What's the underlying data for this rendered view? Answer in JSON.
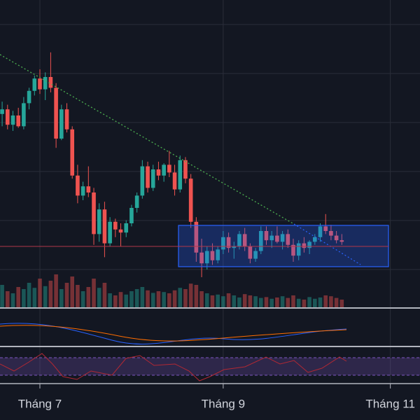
{
  "chart_data": {
    "type": "candlestick",
    "up_color": "#26a69a",
    "down_color": "#ef5350",
    "xlim": [
      -0.4,
      77.5
    ],
    "ylim": [
      10,
      30
    ],
    "volume_ylim": [
      0,
      100
    ],
    "xticks": [
      {
        "value": 7,
        "label": "Tháng 7"
      },
      {
        "value": 41,
        "label": "Tháng 9"
      },
      {
        "value": 72,
        "label": "Tháng 11"
      }
    ],
    "grid": true,
    "candles": [
      [
        22.6,
        23.4,
        21.8,
        22.9
      ],
      [
        22.9,
        23.2,
        21.6,
        21.9
      ],
      [
        21.9,
        22.8,
        21.5,
        22.5
      ],
      [
        22.5,
        23.0,
        21.7,
        21.8
      ],
      [
        21.8,
        23.7,
        21.6,
        23.3
      ],
      [
        23.3,
        24.3,
        22.9,
        24.1
      ],
      [
        24.1,
        25.1,
        23.8,
        24.9
      ],
      [
        24.9,
        25.5,
        23.9,
        24.2
      ],
      [
        24.2,
        25.3,
        23.5,
        25.0
      ],
      [
        25.0,
        26.6,
        24.0,
        24.3
      ],
      [
        24.3,
        24.6,
        20.4,
        21.0
      ],
      [
        21.0,
        23.2,
        20.9,
        22.9
      ],
      [
        22.9,
        23.3,
        21.4,
        21.6
      ],
      [
        21.6,
        21.8,
        18.4,
        18.6
      ],
      [
        18.6,
        19.3,
        16.8,
        17.3
      ],
      [
        17.3,
        18.2,
        17.0,
        17.9
      ],
      [
        17.9,
        19.2,
        17.2,
        17.5
      ],
      [
        17.5,
        17.8,
        14.1,
        14.8
      ],
      [
        14.8,
        16.8,
        14.3,
        16.4
      ],
      [
        16.4,
        16.9,
        13.3,
        14.2
      ],
      [
        14.2,
        15.9,
        14.0,
        15.6
      ],
      [
        15.6,
        15.8,
        14.6,
        15.1
      ],
      [
        15.1,
        15.5,
        14.0,
        14.9
      ],
      [
        14.9,
        15.7,
        14.6,
        15.5
      ],
      [
        15.5,
        16.7,
        15.3,
        16.5
      ],
      [
        16.5,
        17.5,
        16.2,
        17.3
      ],
      [
        17.3,
        19.6,
        17.1,
        19.2
      ],
      [
        19.2,
        19.5,
        17.5,
        17.8
      ],
      [
        17.8,
        19.3,
        17.6,
        19.0
      ],
      [
        19.0,
        19.5,
        18.3,
        18.6
      ],
      [
        18.6,
        19.4,
        18.2,
        19.3
      ],
      [
        19.3,
        20.2,
        18.5,
        18.8
      ],
      [
        18.8,
        19.3,
        17.3,
        17.7
      ],
      [
        17.7,
        19.9,
        17.5,
        19.6
      ],
      [
        19.6,
        19.8,
        18.1,
        18.4
      ],
      [
        18.4,
        18.7,
        15.2,
        15.6
      ],
      [
        15.6,
        15.9,
        13.0,
        13.6
      ],
      [
        13.6,
        14.5,
        12.0,
        12.9
      ],
      [
        12.9,
        14.0,
        12.5,
        13.7
      ],
      [
        13.7,
        14.2,
        12.8,
        13.1
      ],
      [
        13.1,
        14.0,
        12.9,
        13.8
      ],
      [
        13.8,
        15.0,
        13.5,
        14.6
      ],
      [
        14.6,
        14.9,
        13.6,
        13.9
      ],
      [
        13.9,
        14.3,
        13.2,
        14.0
      ],
      [
        14.0,
        15.0,
        13.8,
        14.8
      ],
      [
        14.8,
        15.2,
        13.7,
        14.0
      ],
      [
        14.0,
        14.2,
        12.9,
        13.2
      ],
      [
        13.2,
        13.9,
        13.0,
        13.7
      ],
      [
        13.7,
        15.3,
        13.5,
        15.0
      ],
      [
        15.0,
        15.3,
        14.1,
        14.4
      ],
      [
        14.4,
        15.0,
        13.9,
        14.7
      ],
      [
        14.7,
        15.3,
        14.2,
        14.3
      ],
      [
        14.3,
        15.0,
        13.8,
        14.8
      ],
      [
        14.8,
        15.1,
        13.9,
        14.1
      ],
      [
        14.1,
        14.5,
        13.0,
        13.4
      ],
      [
        13.4,
        14.4,
        13.1,
        14.2
      ],
      [
        14.2,
        14.6,
        13.6,
        13.9
      ],
      [
        13.9,
        14.4,
        13.5,
        14.3
      ],
      [
        14.3,
        14.8,
        14.1,
        14.6
      ],
      [
        14.6,
        15.5,
        14.3,
        15.3
      ],
      [
        15.3,
        16.1,
        14.8,
        15.0
      ],
      [
        15.0,
        15.4,
        14.4,
        14.7
      ],
      [
        14.7,
        15.0,
        14.2,
        14.4
      ],
      [
        14.4,
        14.8,
        14.1,
        14.3
      ]
    ],
    "volume": [
      55,
      40,
      35,
      50,
      45,
      60,
      48,
      70,
      52,
      65,
      80,
      45,
      60,
      75,
      55,
      40,
      50,
      70,
      48,
      60,
      35,
      30,
      38,
      32,
      40,
      45,
      50,
      42,
      36,
      40,
      38,
      35,
      42,
      48,
      45,
      58,
      55,
      40,
      35,
      30,
      32,
      28,
      35,
      30,
      25,
      33,
      30,
      28,
      24,
      26,
      22,
      25,
      28,
      24,
      30,
      22,
      20,
      26,
      22,
      25,
      30,
      28,
      24,
      20
    ]
  }
}
